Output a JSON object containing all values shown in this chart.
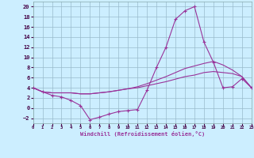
{
  "xlabel": "Windchill (Refroidissement éolien,°C)",
  "x": [
    0,
    1,
    2,
    3,
    4,
    5,
    6,
    7,
    8,
    9,
    10,
    11,
    12,
    13,
    14,
    15,
    16,
    17,
    18,
    19,
    20,
    21,
    22,
    23
  ],
  "line1": [
    4.0,
    3.2,
    2.5,
    2.2,
    1.5,
    0.5,
    -2.3,
    -1.8,
    -1.2,
    -0.7,
    -0.5,
    -0.3,
    3.5,
    8.0,
    12.0,
    17.5,
    19.2,
    20.0,
    13.0,
    9.0,
    4.0,
    4.2,
    5.8,
    4.0
  ],
  "line2": [
    4.0,
    3.2,
    3.0,
    3.0,
    3.0,
    2.8,
    2.8,
    3.0,
    3.2,
    3.5,
    3.8,
    4.2,
    4.8,
    5.5,
    6.2,
    7.0,
    7.8,
    8.3,
    8.8,
    9.2,
    8.5,
    7.5,
    6.2,
    4.0
  ],
  "line3": [
    4.0,
    3.2,
    3.0,
    3.0,
    3.0,
    2.8,
    2.8,
    3.0,
    3.2,
    3.5,
    3.8,
    4.0,
    4.4,
    4.8,
    5.2,
    5.7,
    6.2,
    6.5,
    7.0,
    7.2,
    7.0,
    6.8,
    6.2,
    4.0
  ],
  "line_color": "#993399",
  "bg_color": "#cceeff",
  "grid_color": "#99bbcc",
  "ylim": [
    -3,
    21
  ],
  "yticks": [
    -2,
    0,
    2,
    4,
    6,
    8,
    10,
    12,
    14,
    16,
    18,
    20
  ],
  "xticks": [
    0,
    1,
    2,
    3,
    4,
    5,
    6,
    7,
    8,
    9,
    10,
    11,
    12,
    13,
    14,
    15,
    16,
    17,
    18,
    19,
    20,
    21,
    22,
    23
  ],
  "xlim": [
    0,
    23
  ]
}
